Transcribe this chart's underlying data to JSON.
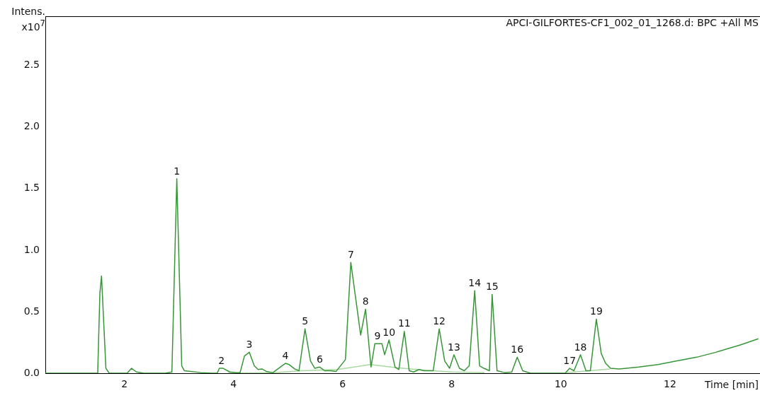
{
  "chart_data": {
    "type": "line",
    "title": "APCI-GILFORTES-CF1_002_01_1268.d: BPC +All MS",
    "xlabel": "Time [min]",
    "ylabel": "Intens. x10$^{7}$",
    "xlim": [
      0.55,
      13.65
    ],
    "xticks": [
      2,
      4,
      6,
      8,
      10,
      12
    ],
    "ylim": [
      0,
      2.9
    ],
    "yticks": [
      {
        "value": 0,
        "label": "0.0"
      },
      {
        "value": 0.5,
        "label": "0.5"
      },
      {
        "value": 1,
        "label": "1.0"
      },
      {
        "value": 1.5,
        "label": "1.5"
      },
      {
        "value": 2,
        "label": "2.0"
      },
      {
        "value": 2.5,
        "label": "2.5"
      }
    ],
    "grid": false,
    "legend": false,
    "marker": "none",
    "line_style": "solid",
    "series": [
      {
        "color": "#389638",
        "x": [
          0.55,
          1.51,
          1.55,
          1.58,
          1.66,
          1.72,
          2.05,
          2.13,
          2.22,
          2.35,
          2.75,
          2.87,
          2.96,
          3.05,
          3.1,
          3.4,
          3.6,
          3.7,
          3.74,
          3.81,
          3.93,
          4.05,
          4.12,
          4.2,
          4.29,
          4.38,
          4.45,
          4.52,
          4.6,
          4.72,
          4.95,
          5.02,
          5.12,
          5.2,
          5.31,
          5.41,
          5.49,
          5.58,
          5.67,
          5.78,
          5.88,
          6.05,
          6.15,
          6.33,
          6.42,
          6.52,
          6.59,
          6.72,
          6.77,
          6.85,
          6.96,
          7.03,
          7.13,
          7.22,
          7.3,
          7.4,
          7.49,
          7.66,
          7.77,
          7.87,
          7.96,
          8.04,
          8.14,
          8.23,
          8.32,
          8.42,
          8.51,
          8.59,
          8.69,
          8.74,
          8.83,
          8.97,
          9.1,
          9.2,
          9.3,
          9.44,
          10.08,
          10.16,
          10.24,
          10.36,
          10.46,
          10.54,
          10.65,
          10.74,
          10.82,
          10.91,
          11.07,
          11.43,
          11.78,
          12.13,
          12.49,
          12.84,
          13.06,
          13.29,
          13.62
        ],
        "values": [
          0,
          0,
          0.65,
          0.79,
          0.04,
          0,
          0,
          0.04,
          0.01,
          0,
          0,
          0.01,
          1.58,
          0.06,
          0.02,
          0.005,
          0,
          0,
          0.04,
          0.04,
          0.01,
          0.005,
          0.005,
          0.14,
          0.17,
          0.06,
          0.03,
          0.035,
          0.015,
          0.005,
          0.08,
          0.07,
          0.035,
          0.02,
          0.36,
          0.1,
          0.04,
          0.05,
          0.02,
          0.02,
          0.015,
          0.11,
          0.9,
          0.31,
          0.52,
          0.05,
          0.24,
          0.24,
          0.15,
          0.27,
          0.05,
          0.03,
          0.34,
          0.02,
          0.01,
          0.03,
          0.02,
          0.02,
          0.36,
          0.1,
          0.04,
          0.15,
          0.04,
          0.02,
          0.06,
          0.67,
          0.06,
          0.04,
          0.02,
          0.64,
          0.02,
          0.005,
          0.01,
          0.13,
          0.02,
          0,
          0,
          0.04,
          0.02,
          0.15,
          0.02,
          0.02,
          0.44,
          0.16,
          0.08,
          0.04,
          0.035,
          0.05,
          0.07,
          0.1,
          0.13,
          0.17,
          0.2,
          0.23,
          0.28
        ]
      },
      {
        "color": "#a8d8a0",
        "x": [
          3.9,
          4.75,
          5.25,
          5.9,
          6.5,
          7.0,
          7.5,
          8.0,
          8.6,
          9.0,
          10.1,
          10.9
        ],
        "values": [
          0,
          0.005,
          0.02,
          0.03,
          0.07,
          0.045,
          0.025,
          0.01,
          0.005,
          null,
          0.005,
          0.035
        ]
      }
    ],
    "annotations": [
      {
        "text": "1",
        "x": 2.96,
        "y": 1.58
      },
      {
        "text": "2",
        "x": 3.78,
        "y": 0.04
      },
      {
        "text": "3",
        "x": 4.29,
        "y": 0.17
      },
      {
        "text": "4",
        "x": 4.95,
        "y": 0.08
      },
      {
        "text": "5",
        "x": 5.31,
        "y": 0.36
      },
      {
        "text": "6",
        "x": 5.58,
        "y": 0.05
      },
      {
        "text": "7",
        "x": 6.15,
        "y": 0.9
      },
      {
        "text": "8",
        "x": 6.42,
        "y": 0.52
      },
      {
        "text": "9",
        "x": 6.64,
        "y": 0.24
      },
      {
        "text": "10",
        "x": 6.85,
        "y": 0.27
      },
      {
        "text": "11",
        "x": 7.13,
        "y": 0.34
      },
      {
        "text": "12",
        "x": 7.77,
        "y": 0.36
      },
      {
        "text": "13",
        "x": 8.04,
        "y": 0.15
      },
      {
        "text": "14",
        "x": 8.42,
        "y": 0.67
      },
      {
        "text": "15",
        "x": 8.74,
        "y": 0.64
      },
      {
        "text": "16",
        "x": 9.2,
        "y": 0.13
      },
      {
        "text": "17",
        "x": 10.16,
        "y": 0.04
      },
      {
        "text": "18",
        "x": 10.36,
        "y": 0.15
      },
      {
        "text": "19",
        "x": 10.65,
        "y": 0.44
      }
    ]
  }
}
